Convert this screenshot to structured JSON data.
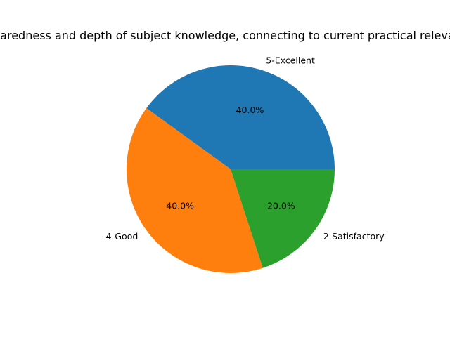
{
  "chart_data": {
    "type": "pie",
    "title": "Preparedness and depth of subject knowledge, connecting to current practical relevance",
    "categories": [
      "5-Excellent",
      "4-Good",
      "2-Satisfactory"
    ],
    "values": [
      40.0,
      40.0,
      20.0
    ],
    "value_labels": [
      "40.0%",
      "40.0%",
      "20.0%"
    ],
    "colors": [
      "#1f77b4",
      "#ff7f0e",
      "#2ca02c"
    ],
    "start_angle": 0,
    "direction": "counterclockwise"
  }
}
